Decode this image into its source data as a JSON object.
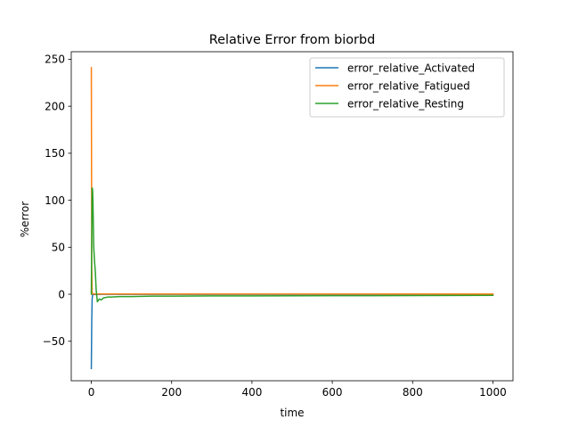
{
  "chart_data": {
    "type": "line",
    "title": "Relative Error from biorbd",
    "xlabel": "time",
    "ylabel": "%error",
    "xlim": [
      -50,
      1050
    ],
    "ylim": [
      -92,
      258
    ],
    "xticks": [
      0,
      200,
      400,
      600,
      800,
      1000
    ],
    "yticks": [
      -50,
      0,
      50,
      100,
      150,
      200,
      250
    ],
    "xtick_labels": [
      "0",
      "200",
      "400",
      "600",
      "800",
      "1000"
    ],
    "ytick_labels": [
      "−50",
      "0",
      "50",
      "100",
      "150",
      "200",
      "250"
    ],
    "grid": false,
    "legend_position": "top-right",
    "series": [
      {
        "name": "error_relative_Activated",
        "color": "#1f77b4",
        "x": [
          0,
          1,
          2,
          3,
          4,
          6,
          10,
          30,
          100,
          300,
          600,
          1000
        ],
        "y": [
          -79,
          -30,
          -5,
          -1,
          -0.5,
          -0.3,
          -0.2,
          -0.1,
          -0.1,
          -0.1,
          -0.1,
          -0.1
        ]
      },
      {
        "name": "error_relative_Fatigued",
        "color": "#ff7f0e",
        "x": [
          0,
          1,
          2,
          3,
          5,
          10,
          30,
          100,
          300,
          600,
          1000
        ],
        "y": [
          241,
          30,
          2,
          0.5,
          0.3,
          0.2,
          0.2,
          0.2,
          0.2,
          0.2,
          0.2
        ]
      },
      {
        "name": "error_relative_Resting",
        "color": "#2ca02c",
        "x": [
          0,
          1,
          2,
          3,
          4,
          6,
          8,
          10,
          12,
          15,
          20,
          25,
          30,
          40,
          50,
          70,
          100,
          150,
          200,
          300,
          400,
          500,
          600,
          700,
          800,
          900,
          1000
        ],
        "y": [
          0,
          60,
          113,
          112,
          100,
          50,
          35,
          24,
          5,
          -8,
          -5,
          -6,
          -4,
          -3,
          -3,
          -2.5,
          -2.5,
          -2,
          -2,
          -1.8,
          -1.8,
          -1.6,
          -1.5,
          -1.5,
          -1.4,
          -1.3,
          -1.2
        ]
      }
    ]
  }
}
